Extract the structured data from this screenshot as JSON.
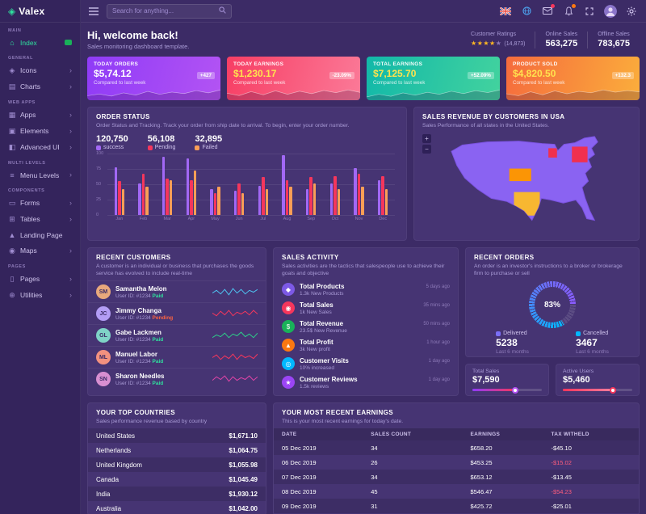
{
  "app": {
    "name": "Valex"
  },
  "navbar": {
    "search_placeholder": "Search for anything..."
  },
  "sidebar": {
    "sections": [
      {
        "label": "MAIN",
        "items": [
          {
            "label": "Index",
            "icon": "home-icon",
            "active": true,
            "badge": true
          }
        ]
      },
      {
        "label": "GENERAL",
        "items": [
          {
            "label": "Icons",
            "icon": "icons-icon",
            "chevron": true
          },
          {
            "label": "Charts",
            "icon": "charts-icon",
            "chevron": true
          }
        ]
      },
      {
        "label": "WEB APPS",
        "items": [
          {
            "label": "Apps",
            "icon": "apps-icon",
            "chevron": true
          },
          {
            "label": "Elements",
            "icon": "elements-icon",
            "chevron": true
          },
          {
            "label": "Advanced UI",
            "icon": "advanced-ui-icon",
            "chevron": true
          }
        ]
      },
      {
        "label": "MULTI LEVELS",
        "items": [
          {
            "label": "Menu Levels",
            "icon": "menu-levels-icon",
            "chevron": true
          }
        ]
      },
      {
        "label": "COMPONENTS",
        "items": [
          {
            "label": "Forms",
            "icon": "forms-icon",
            "chevron": true
          },
          {
            "label": "Tables",
            "icon": "tables-icon",
            "chevron": true
          },
          {
            "label": "Landing Page",
            "icon": "landing-page-icon",
            "chevron": false
          },
          {
            "label": "Maps",
            "icon": "maps-icon",
            "chevron": true
          }
        ]
      },
      {
        "label": "PAGES",
        "items": [
          {
            "label": "Pages",
            "icon": "pages-icon",
            "chevron": true
          },
          {
            "label": "Utilities",
            "icon": "utilities-icon",
            "chevron": true
          }
        ]
      }
    ]
  },
  "welcome": {
    "title": "Hi, welcome back!",
    "subtitle": "Sales monitoring dashboard template.",
    "ratings_label": "Customer Ratings",
    "ratings_value": "(14,873)",
    "online_label": "Online Sales",
    "online_value": "563,275",
    "offline_label": "Offline Sales",
    "offline_value": "783,675"
  },
  "stat_cards": [
    {
      "label": "TODAY ORDERS",
      "value": "$5,74.12",
      "value_color": "#ffffff",
      "compare": "Compared to last week",
      "badge": "+427",
      "gradient": [
        "#8f3bf7",
        "#b354f3"
      ],
      "spark": [
        30,
        42,
        28,
        50,
        35,
        60,
        40,
        55,
        45,
        65,
        50,
        70
      ]
    },
    {
      "label": "TODAY EARNINGS",
      "value": "$1,230.17",
      "value_color": "#ffe34e",
      "compare": "Compared to last week",
      "badge": "-23.09%",
      "gradient": [
        "#f73e64",
        "#fb7a98"
      ],
      "spark": [
        45,
        30,
        55,
        35,
        60,
        38,
        58,
        42,
        62,
        48,
        66,
        50
      ]
    },
    {
      "label": "TOTAL EARNINGS",
      "value": "$7,125.70",
      "value_color": "#ffe34e",
      "compare": "Compared to last week",
      "badge": "+52.09%",
      "gradient": [
        "#12b8a9",
        "#43d39e"
      ],
      "spark": [
        25,
        45,
        30,
        55,
        38,
        60,
        45,
        68,
        50,
        72,
        58,
        78
      ]
    },
    {
      "label": "PRODUCT SOLD",
      "value": "$4,820.50",
      "value_color": "#ffe34e",
      "compare": "Compared to last week",
      "badge": "+132.3",
      "gradient": [
        "#f56b3d",
        "#fbae3c"
      ],
      "spark": [
        40,
        28,
        52,
        34,
        58,
        40,
        55,
        46,
        64,
        50,
        60,
        52
      ]
    }
  ],
  "chart_data": {
    "type": "bar",
    "title": "ORDER STATUS",
    "categories": [
      "Jan",
      "Feb",
      "Mar",
      "Apr",
      "May",
      "Jun",
      "Jul",
      "Aug",
      "Sep",
      "Oct",
      "Nov",
      "Dec"
    ],
    "series": [
      {
        "name": "success",
        "color": "#a268f5",
        "values": [
          78,
          52,
          95,
          93,
          42,
          40,
          47,
          97,
          42,
          52,
          77,
          57
        ]
      },
      {
        "name": "Pending",
        "color": "#f5365c",
        "values": [
          55,
          68,
          60,
          57,
          36,
          52,
          62,
          57,
          62,
          63,
          68,
          63
        ]
      },
      {
        "name": "Failed",
        "color": "#fb9e56",
        "values": [
          42,
          46,
          57,
          72,
          46,
          36,
          42,
          46,
          52,
          42,
          46,
          42
        ]
      }
    ],
    "ylim": [
      0,
      100
    ],
    "yticks": [
      0,
      25,
      50,
      75,
      100
    ],
    "grid": true,
    "legend_position": "top"
  },
  "cards": {
    "order_status": {
      "title": "ORDER STATUS",
      "subtitle": "Order Status and Tracking. Track your order from ship date to arrival. To begin, enter your order number.",
      "stats": [
        {
          "value": "120,750",
          "label": "success",
          "color": "#a268f5"
        },
        {
          "value": "56,108",
          "label": "Pending",
          "color": "#f5365c"
        },
        {
          "value": "32,895",
          "label": "Failed",
          "color": "#fb9e56"
        }
      ]
    },
    "map": {
      "title": "SALES REVENUE BY CUSTOMERS IN USA",
      "subtitle": "Sales Performance of all states in the United States.",
      "zoom_in": "+",
      "zoom_out": "−"
    },
    "customers": {
      "title": "RECENT CUSTOMERS",
      "subtitle": "A customer is an individual or business that purchases the goods service has evolved to include real-time",
      "list": [
        {
          "name": "Samantha Melon",
          "id": "User ID: #1234",
          "status": "Paid",
          "status_color": "#2fe09e",
          "avatar_color": "#e8a87c",
          "spark_color": "#4ec2f0",
          "spark": [
            4,
            7,
            3,
            8,
            2,
            9,
            4,
            8,
            3,
            7,
            5,
            8
          ]
        },
        {
          "name": "Jimmy Changa",
          "id": "User ID: #1234",
          "status": "Pending",
          "status_color": "#fb6340",
          "avatar_color": "#b39df5",
          "spark_color": "#f5365c",
          "spark": [
            6,
            3,
            8,
            4,
            9,
            3,
            7,
            5,
            8,
            4,
            9,
            5
          ]
        },
        {
          "name": "Gabe Lackmen",
          "id": "User ID: #1234",
          "status": "Paid",
          "status_color": "#2fe09e",
          "avatar_color": "#7fd3c7",
          "spark_color": "#2dce89",
          "spark": [
            3,
            6,
            4,
            8,
            3,
            7,
            5,
            9,
            4,
            7,
            3,
            8
          ]
        },
        {
          "name": "Manuel Labor",
          "id": "User ID: #1234",
          "status": "Paid",
          "status_color": "#2fe09e",
          "avatar_color": "#f2917f",
          "spark_color": "#f5365c",
          "spark": [
            5,
            8,
            3,
            7,
            4,
            9,
            3,
            8,
            5,
            7,
            4,
            9
          ]
        },
        {
          "name": "Sharon Needles",
          "id": "User ID: #1234",
          "status": "Paid",
          "status_color": "#2fe09e",
          "avatar_color": "#d88fd1",
          "spark_color": "#e044a7",
          "spark": [
            4,
            8,
            5,
            9,
            3,
            8,
            4,
            7,
            5,
            9,
            4,
            8
          ]
        }
      ]
    },
    "activity": {
      "title": "SALES ACTIVITY",
      "subtitle": "Sales activities are the tactics that salespeople use to achieve their goals and objective",
      "items": [
        {
          "title": "Total Products",
          "sub": "1.3k New Products",
          "time": "5 days ago",
          "icon": "box-icon",
          "color": "#7c59e6"
        },
        {
          "title": "Total Sales",
          "sub": "1k New Sales",
          "time": "35 mins ago",
          "icon": "cart-icon",
          "color": "#f5365c"
        },
        {
          "title": "Total Revenue",
          "sub": "23.5$ New Revenue",
          "time": "50 mins ago",
          "icon": "dollar-icon",
          "color": "#19b159"
        },
        {
          "title": "Total Profit",
          "sub": "3k New profit",
          "time": "1 hour ago",
          "icon": "profit-icon",
          "color": "#fb7811"
        },
        {
          "title": "Customer Visits",
          "sub": "10% increased",
          "time": "1 day ago",
          "icon": "eye-icon",
          "color": "#01b8ff"
        },
        {
          "title": "Customer Reviews",
          "sub": "1.5k reviews",
          "time": "1 day ago",
          "icon": "star-icon",
          "color": "#9b45f5"
        }
      ]
    },
    "orders": {
      "title": "RECENT ORDERS",
      "subtitle": "An order is an investor's instructions to a broker or brokerage firm to purchase or sell",
      "gauge_pct": "83%",
      "legends": [
        {
          "label": "Delivered",
          "value": "5238",
          "sub": "Last 6 months",
          "color": "#7a6ff6"
        },
        {
          "label": "Cancelled",
          "value": "3467",
          "sub": "Last 6 months",
          "color": "#01b8ff"
        }
      ]
    },
    "countries": {
      "title": "YOUR TOP COUNTRIES",
      "subtitle": "Sales performance revenue based by country",
      "rows": [
        [
          "United States",
          "$1,671.10"
        ],
        [
          "Netherlands",
          "$1,064.75"
        ],
        [
          "United Kingdom",
          "$1,055.98"
        ],
        [
          "Canada",
          "$1,045.49"
        ],
        [
          "India",
          "$1,930.12"
        ],
        [
          "Australia",
          "$1,042.00"
        ]
      ]
    },
    "earnings": {
      "title": "YOUR MOST RECENT EARNINGS",
      "subtitle": "This is your most recent earnings for today's date.",
      "columns": [
        "DATE",
        "SALES COUNT",
        "EARNINGS",
        "TAX WITHELD"
      ],
      "rows": [
        {
          "date": "05 Dec 2019",
          "count": "34",
          "earnings": "$658.20",
          "tax": "-$45.10",
          "red": false
        },
        {
          "date": "06 Dec 2019",
          "count": "26",
          "earnings": "$453.25",
          "tax": "-$15.02",
          "red": true
        },
        {
          "date": "07 Dec 2019",
          "count": "34",
          "earnings": "$653.12",
          "tax": "-$13.45",
          "red": false
        },
        {
          "date": "08 Dec 2019",
          "count": "45",
          "earnings": "$546.47",
          "tax": "-$54.23",
          "red": true
        },
        {
          "date": "09 Dec 2019",
          "count": "31",
          "earnings": "$425.72",
          "tax": "-$25.01",
          "red": false
        }
      ]
    }
  },
  "mini_cards": [
    {
      "label": "Total Sales",
      "value": "$7,590",
      "percent": 62,
      "track": [
        "#8f3bf7",
        "#f5365c"
      ],
      "knob": "#b354f3"
    },
    {
      "label": "Active Users",
      "value": "$5,460",
      "percent": 72,
      "track": [
        "#f5365c",
        "#fd7e9e"
      ],
      "knob": "#f5365c"
    }
  ],
  "colors": {
    "background": "#3c2b66",
    "sidebar": "#34245c",
    "card": "#463473",
    "accent_green": "#2fe09e",
    "accent_purple": "#a268f5",
    "accent_pink": "#f5365c",
    "accent_orange": "#fb9e56",
    "accent_blue": "#01b8ff",
    "star_orange": "#ffb822",
    "map_fill": "#8a63f2"
  }
}
